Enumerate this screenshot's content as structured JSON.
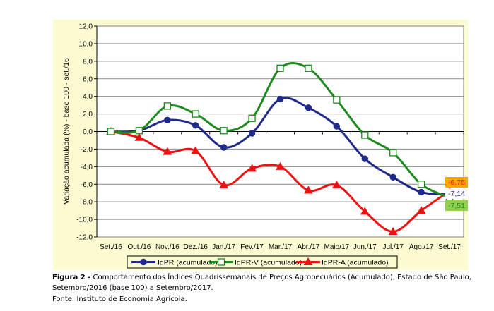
{
  "chart_data": {
    "type": "line",
    "ylabel": "Variação acumulada (%) - base 100 - set./16",
    "ylim": [
      -12,
      12
    ],
    "ytick_step": 2,
    "ytick_labels": [
      "12,0",
      "10,0",
      "8,0",
      "6,0",
      "4,0",
      "2,0",
      "0,0",
      "-2,0",
      "-4,0",
      "-6,0",
      "-8,0",
      "-10,0",
      "-12,0"
    ],
    "categories": [
      "Set./16",
      "Out./16",
      "Nov./16",
      "Dez./16",
      "Jan./17",
      "Fev./17",
      "Mar./17",
      "Abr./17",
      "Maio/17",
      "Jun./17",
      "Jul./17",
      "Ago./17",
      "Set./17"
    ],
    "grid": true,
    "legend_position": "bottom",
    "plot_background": "#fdfbd2",
    "series": [
      {
        "name": "IqPR (acumulado)",
        "color": "#1f2a8a",
        "marker": "circle",
        "values": [
          0.0,
          0.1,
          1.3,
          0.7,
          -1.8,
          -0.2,
          3.7,
          2.7,
          0.6,
          -3.1,
          -5.2,
          -6.9,
          -7.14
        ]
      },
      {
        "name": "IqPR-V (acumulado)",
        "color": "#1e8a1e",
        "marker": "square",
        "values": [
          0.0,
          0.1,
          2.9,
          2.0,
          0.1,
          1.5,
          7.2,
          7.2,
          3.6,
          -0.4,
          -2.4,
          -6.0,
          -7.51
        ]
      },
      {
        "name": "IqPR-A (acumulado)",
        "color": "#ee1111",
        "marker": "triangle",
        "values": [
          0.0,
          -0.7,
          -2.3,
          -2.2,
          -6.1,
          -4.2,
          -4.0,
          -6.7,
          -6.1,
          -9.1,
          -11.4,
          -9.0,
          -6.75
        ]
      }
    ],
    "end_labels": [
      {
        "text": "-6,75",
        "bg": "#ffa500",
        "color": "#ee1111"
      },
      {
        "text": "-7,14",
        "bg": "#ffffff",
        "color": "#1f2a8a"
      },
      {
        "text": "-7,51",
        "bg": "#92d050",
        "color": "#1e8a1e"
      }
    ]
  },
  "caption": {
    "figure_label": "Figura 2 -",
    "text": " Comportamento dos Índices Quadrissemanais de Preços Agropecuários (Acumulado), Estado de São Paulo, Setembro/2016 (base 100) a Setembro/2017."
  },
  "source": "Fonte: Instituto de Economia Agrícola."
}
